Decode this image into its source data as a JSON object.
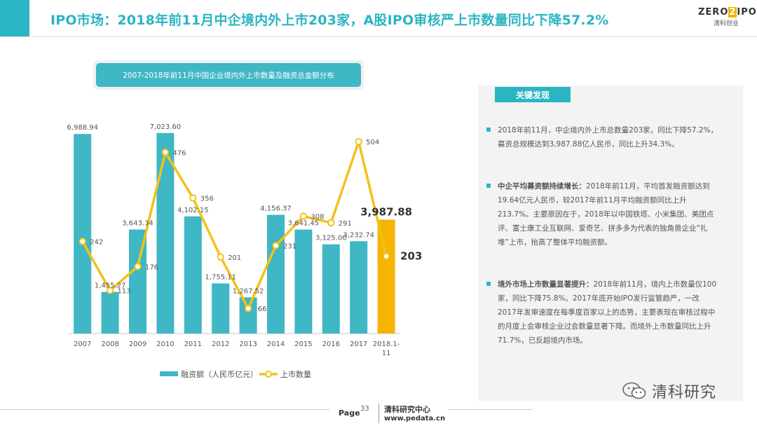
{
  "header": {
    "title": "IPO市场：2018年前11月中企境内外上市203家，A股IPO审核严上市数量同比下降57.2%",
    "logo_top_left": "ZERO",
    "logo_top_mid": "2",
    "logo_top_right": "IPO",
    "logo_bottom": "清科创业",
    "accent_color": "#2bb5c3"
  },
  "chart_title": "2007-2018年前11月中国企业境内外上市数量及融资总金额分布",
  "chart_data": {
    "type": "bar",
    "categories": [
      "2007",
      "2008",
      "2009",
      "2010",
      "2011",
      "2012",
      "2013",
      "2014",
      "2015",
      "2016",
      "2017",
      "2018.1-11"
    ],
    "series": [
      {
        "name": "融资额（人民币亿元）",
        "type": "bar",
        "color": "#3fb7c4",
        "highlight_color": "#f5b400",
        "values": [
          6988.94,
          1455.27,
          3643.34,
          7023.6,
          4102.15,
          1755.11,
          1267.52,
          4156.37,
          3641.45,
          3125.0,
          3232.74,
          3987.88
        ],
        "labels": [
          "6,988.94",
          "1,455.27",
          "3,643.34",
          "7,023.60",
          "4,102.15",
          "1,755.11",
          "1,267.52",
          "4,156.37",
          "3,641.45",
          "3,125.00",
          "3,232.74",
          "3,987.88"
        ]
      },
      {
        "name": "上市数量",
        "type": "line",
        "color": "#f2c218",
        "values": [
          242,
          113,
          176,
          476,
          356,
          201,
          66,
          231,
          308,
          291,
          504,
          203
        ],
        "labels": [
          "242",
          "113",
          "176",
          "476",
          "356",
          "201",
          "66",
          "231",
          "308",
          "291",
          "504",
          "203"
        ]
      }
    ],
    "bar_ylim": [
      0,
      8000
    ],
    "line_ylim": [
      0,
      600
    ],
    "legend_position": "bottom",
    "grid": false
  },
  "key_findings": {
    "label": "关键发现",
    "items": [
      {
        "bold": "",
        "text": "2018年前11月，中企境内外上市总数量203家，同比下降57.2%，募资总规模达到3,987.88亿人民币，同比上升34.3%。"
      },
      {
        "bold": "中企平均募资额持续增长：",
        "text": "2018年前11月，平均首发融资额达到19.64亿元人民币，较2017年前11月平均融资额同比上升213.7%。主要原因在于，2018年以中国铁塔、小米集团、美团点评、富士康工业互联网、爱奇艺、拼多多为代表的独角兽企业“扎堆”上市，抬高了整体平均融资额。"
      },
      {
        "bold": "境外市场上市数量显著提升：",
        "text": "2018年前11月，境内上市数量仅100家，同比下降75.8%。2017年底开始IPO发行监管趋严，一改2017年发审速度在每季度百家以上的态势，主要表现在审核过程中的月度上会审核企业过会数量显著下降。而境外上市数量同比上升71.7%，已反超境内市场。"
      }
    ]
  },
  "footer": {
    "page_label": "Page",
    "page_number": "33",
    "org": "清科研究中心",
    "url": "www.pedata.cn"
  },
  "watermark": {
    "icon": "wechat-icon",
    "name": "清科研究"
  }
}
